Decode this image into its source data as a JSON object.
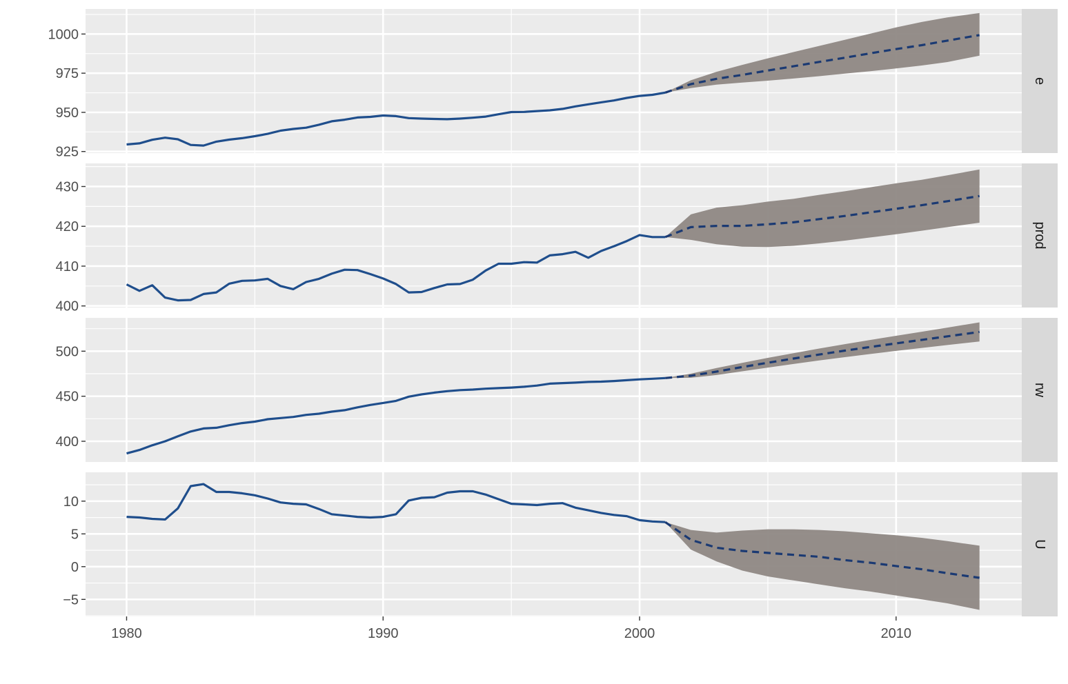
{
  "chart_data": {
    "type": "line",
    "layout": "faceted-vertical",
    "x_axis": {
      "ticks": [
        1980,
        1990,
        2000,
        2010
      ],
      "range": [
        1978.4,
        2014.9
      ]
    },
    "grid": true,
    "legend": "none",
    "colors": {
      "history": "#1f4e8c",
      "forecast": "#1b3a73",
      "interval": "#8c8480",
      "panel_bg": "#ebebeb",
      "strip_bg": "#d9d9d9"
    },
    "facets": [
      {
        "label": "e",
        "y_range": [
          924,
          1016
        ],
        "y_ticks": [
          925,
          950,
          975,
          1000
        ],
        "history": {
          "x": [
            1980,
            1980.5,
            1981,
            1981.5,
            1982,
            1982.5,
            1983,
            1983.5,
            1984,
            1984.5,
            1985,
            1985.5,
            1986,
            1986.5,
            1987,
            1987.5,
            1988,
            1988.5,
            1989,
            1989.5,
            1990,
            1990.5,
            1991,
            1991.5,
            1992,
            1992.5,
            1993,
            1993.5,
            1994,
            1994.5,
            1995,
            1995.5,
            1996,
            1996.5,
            1997,
            1997.5,
            1998,
            1998.5,
            1999,
            1999.5,
            2000,
            2000.5,
            2001
          ],
          "y": [
            929.5,
            930.2,
            932.5,
            933.8,
            932.8,
            929.2,
            928.8,
            931.3,
            932.6,
            933.5,
            934.8,
            936.3,
            938.3,
            939.4,
            940.2,
            942.1,
            944.3,
            945.3,
            946.7,
            947.1,
            948.0,
            947.6,
            946.3,
            946.0,
            945.8,
            945.6,
            946.0,
            946.6,
            947.3,
            948.8,
            950.2,
            950.3,
            950.8,
            951.3,
            952.2,
            953.8,
            955.1,
            956.4,
            957.6,
            959.2,
            960.5,
            961.2,
            962.6
          ]
        },
        "forecast": {
          "x": [
            2001,
            2002,
            2003,
            2004,
            2005,
            2006,
            2007,
            2008,
            2009,
            2010,
            2011,
            2012,
            2013.25
          ],
          "y": [
            962.6,
            968.0,
            971.4,
            973.9,
            976.7,
            979.4,
            982.2,
            984.9,
            987.7,
            990.4,
            992.9,
            995.8,
            999.3
          ],
          "lower": [
            962.6,
            965.5,
            967.7,
            969.0,
            970.2,
            971.6,
            973.1,
            974.7,
            976.3,
            978.0,
            979.9,
            982.1,
            986.2
          ],
          "upper": [
            962.6,
            970.5,
            975.9,
            980.3,
            984.5,
            988.5,
            992.4,
            996.3,
            1000.3,
            1004.2,
            1007.7,
            1010.6,
            1013.4
          ]
        }
      },
      {
        "label": "prod",
        "y_range": [
          399.6,
          435.8
        ],
        "y_ticks": [
          400,
          410,
          420,
          430
        ],
        "history": {
          "x": [
            1980,
            1980.5,
            1981,
            1981.5,
            1982,
            1982.5,
            1983,
            1983.5,
            1984,
            1984.5,
            1985,
            1985.5,
            1986,
            1986.5,
            1987,
            1987.5,
            1988,
            1988.5,
            1989,
            1989.5,
            1990,
            1990.5,
            1991,
            1991.5,
            1992,
            1992.5,
            1993,
            1993.5,
            1994,
            1994.5,
            1995,
            1995.5,
            1996,
            1996.5,
            1997,
            1997.5,
            1998,
            1998.5,
            1999,
            1999.5,
            2000,
            2000.5,
            2001
          ],
          "y": [
            405.4,
            403.8,
            405.2,
            402.1,
            401.4,
            401.5,
            403.0,
            403.4,
            405.6,
            406.3,
            406.4,
            406.8,
            405.0,
            404.2,
            406.0,
            406.8,
            408.1,
            409.1,
            409.0,
            408.0,
            406.9,
            405.5,
            403.4,
            403.5,
            404.5,
            405.4,
            405.5,
            406.6,
            408.9,
            410.6,
            410.6,
            411.0,
            410.9,
            412.7,
            413.0,
            413.6,
            412.1,
            413.8,
            415.0,
            416.3,
            417.8,
            417.3,
            417.3
          ]
        },
        "forecast": {
          "x": [
            2001,
            2002,
            2003,
            2004,
            2005,
            2006,
            2007,
            2008,
            2009,
            2010,
            2011,
            2012,
            2013.25
          ],
          "y": [
            417.3,
            419.8,
            420.1,
            420.1,
            420.5,
            421.0,
            421.8,
            422.6,
            423.5,
            424.4,
            425.3,
            426.3,
            427.6
          ],
          "lower": [
            417.3,
            416.6,
            415.5,
            414.9,
            414.8,
            415.1,
            415.7,
            416.4,
            417.2,
            418.0,
            418.9,
            419.8,
            420.9
          ],
          "upper": [
            417.3,
            423.0,
            424.7,
            425.3,
            426.2,
            426.9,
            427.9,
            428.8,
            429.8,
            430.8,
            431.7,
            432.8,
            434.3
          ]
        }
      },
      {
        "label": "rw",
        "y_range": [
          377,
          537
        ],
        "y_ticks": [
          400,
          450,
          500
        ],
        "history": {
          "x": [
            1980,
            1980.5,
            1981,
            1981.5,
            1982,
            1982.5,
            1983,
            1983.5,
            1984,
            1984.5,
            1985,
            1985.5,
            1986,
            1986.5,
            1987,
            1987.5,
            1988,
            1988.5,
            1989,
            1989.5,
            1990,
            1990.5,
            1991,
            1991.5,
            1992,
            1992.5,
            1993,
            1993.5,
            1994,
            1994.5,
            1995,
            1995.5,
            1996,
            1996.5,
            1997,
            1997.5,
            1998,
            1998.5,
            1999,
            1999.5,
            2000,
            2000.5,
            2001
          ],
          "y": [
            386.5,
            390.3,
            395.5,
            400.0,
            405.5,
            410.8,
            414.2,
            415.0,
            417.8,
            420.2,
            421.8,
            424.5,
            425.8,
            427.0,
            429.3,
            430.6,
            432.9,
            434.5,
            437.6,
            440.3,
            442.5,
            444.8,
            449.5,
            452.0,
            454.0,
            455.6,
            456.8,
            457.4,
            458.4,
            459.0,
            459.6,
            460.5,
            461.8,
            464.0,
            464.6,
            465.1,
            465.9,
            466.2,
            466.9,
            467.8,
            468.7,
            469.4,
            470.2
          ]
        },
        "forecast": {
          "x": [
            2001,
            2002,
            2003,
            2004,
            2005,
            2006,
            2007,
            2008,
            2009,
            2010,
            2011,
            2012,
            2013.25
          ],
          "y": [
            470.2,
            472.8,
            477.4,
            482.4,
            487.2,
            491.8,
            496.3,
            500.6,
            504.7,
            508.7,
            512.6,
            516.5,
            521.4
          ],
          "lower": [
            470.2,
            470.5,
            473.5,
            477.7,
            481.8,
            485.8,
            489.7,
            493.4,
            496.9,
            500.3,
            503.6,
            506.8,
            510.8
          ],
          "upper": [
            470.2,
            475.1,
            481.3,
            487.1,
            492.6,
            497.8,
            502.9,
            507.8,
            512.5,
            517.1,
            521.6,
            526.2,
            532.0
          ]
        }
      },
      {
        "label": "U",
        "y_range": [
          -7.6,
          14.4
        ],
        "y_ticks": [
          -5,
          0,
          5,
          10
        ],
        "history": {
          "x": [
            1980,
            1980.5,
            1981,
            1981.5,
            1982,
            1982.5,
            1983,
            1983.5,
            1984,
            1984.5,
            1985,
            1985.5,
            1986,
            1986.5,
            1987,
            1987.5,
            1988,
            1988.5,
            1989,
            1989.5,
            1990,
            1990.5,
            1991,
            1991.5,
            1992,
            1992.5,
            1993,
            1993.5,
            1994,
            1994.5,
            1995,
            1995.5,
            1996,
            1996.5,
            1997,
            1997.5,
            1998,
            1998.5,
            1999,
            1999.5,
            2000,
            2000.5,
            2001
          ],
          "y": [
            7.6,
            7.5,
            7.3,
            7.2,
            8.9,
            12.3,
            12.6,
            11.4,
            11.4,
            11.2,
            10.9,
            10.4,
            9.8,
            9.6,
            9.5,
            8.8,
            8.0,
            7.8,
            7.6,
            7.5,
            7.6,
            8.0,
            10.1,
            10.5,
            10.6,
            11.3,
            11.5,
            11.5,
            11.0,
            10.3,
            9.6,
            9.5,
            9.4,
            9.6,
            9.7,
            9.0,
            8.6,
            8.2,
            7.9,
            7.7,
            7.1,
            6.9,
            6.8
          ]
        },
        "forecast": {
          "x": [
            2001,
            2002,
            2003,
            2004,
            2005,
            2006,
            2007,
            2008,
            2009,
            2010,
            2011,
            2012,
            2013.25
          ],
          "y": [
            6.8,
            4.1,
            2.9,
            2.4,
            2.1,
            1.8,
            1.5,
            1.0,
            0.6,
            0.1,
            -0.4,
            -1.0,
            -1.7
          ],
          "lower": [
            6.8,
            2.6,
            0.8,
            -0.6,
            -1.5,
            -2.1,
            -2.7,
            -3.3,
            -3.8,
            -4.4,
            -5.0,
            -5.6,
            -6.6
          ],
          "upper": [
            6.8,
            5.6,
            5.2,
            5.5,
            5.7,
            5.7,
            5.6,
            5.4,
            5.1,
            4.8,
            4.4,
            3.9,
            3.2
          ]
        }
      }
    ]
  }
}
